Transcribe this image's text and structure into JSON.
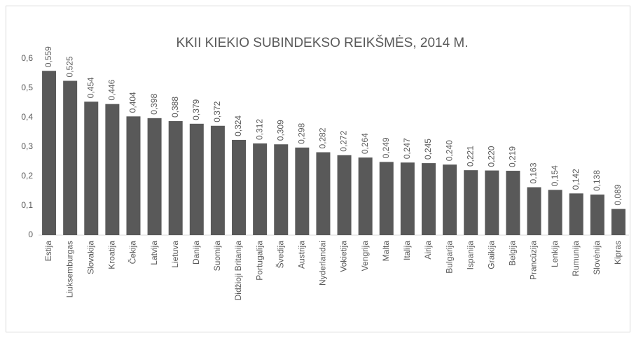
{
  "chart_data": {
    "type": "bar",
    "title": "KKII KIEKIO SUBINDEKSO REIKŠMĖS, 2014 M.",
    "categories": [
      "Estija",
      "Liuksemburgas",
      "Slovakija",
      "Kroatija",
      "Čekija",
      "Latvija",
      "Lietuva",
      "Danija",
      "Suomija",
      "Didžioji Britanija",
      "Portugalija",
      "Švedija",
      "Austrija",
      "Nyderlandai",
      "Vokietija",
      "Vengrija",
      "Malta",
      "Italija",
      "Airija",
      "Bulgarija",
      "Ispanija",
      "Graikija",
      "Belgija",
      "Prancūzija",
      "Lenkija",
      "Rumunija",
      "Slovėnija",
      "Kipras"
    ],
    "values": [
      0.559,
      0.525,
      0.454,
      0.446,
      0.404,
      0.398,
      0.388,
      0.379,
      0.372,
      0.324,
      0.312,
      0.309,
      0.298,
      0.282,
      0.272,
      0.264,
      0.249,
      0.247,
      0.245,
      0.24,
      0.221,
      0.22,
      0.219,
      0.163,
      0.154,
      0.142,
      0.138,
      0.089
    ],
    "value_labels": [
      "0,559",
      "0,525",
      "0,454",
      "0,446",
      "0,404",
      "0,398",
      "0,388",
      "0,379",
      "0,372",
      "0,324",
      "0,312",
      "0,309",
      "0,298",
      "0,282",
      "0,272",
      "0,264",
      "0,249",
      "0,247",
      "0,245",
      "0,240",
      "0,221",
      "0,220",
      "0,219",
      "0,163",
      "0,154",
      "0,142",
      "0,138",
      "0,089"
    ],
    "color": "#595959",
    "ylim": [
      0,
      0.6
    ],
    "yticks": [
      0,
      {
        "value": 0.1,
        "label": "0,1"
      },
      {
        "value": 0.2,
        "label": "0,2"
      },
      {
        "value": 0.3,
        "label": "0,3"
      },
      {
        "value": 0.4,
        "label": "0,4"
      },
      {
        "value": 0.5,
        "label": "0,5"
      },
      {
        "value": 0.6,
        "label": "0,6"
      }
    ],
    "grid": false
  }
}
